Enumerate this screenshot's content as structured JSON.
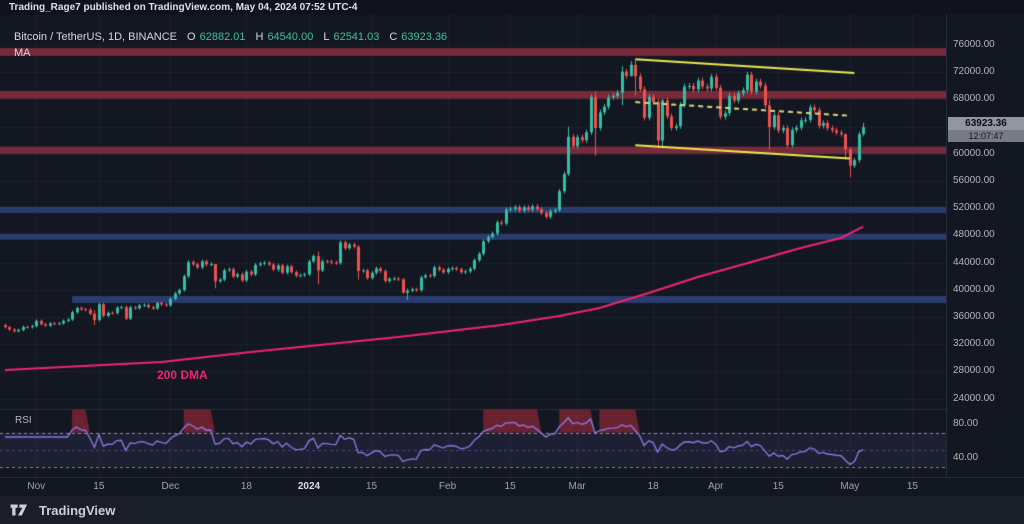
{
  "header": {
    "published_line": "Trading_Rage7 published on TradingView.com, May 04, 2024 07:52 UTC-4"
  },
  "legend": {
    "symbol": "Bitcoin / TetherUS, 1D, BINANCE",
    "ohlc": [
      {
        "label": "O",
        "value": "62882.01"
      },
      {
        "label": "H",
        "value": "64540.00"
      },
      {
        "label": "L",
        "value": "62541.03"
      },
      {
        "label": "C",
        "value": "63923.36"
      }
    ],
    "indicator": "MA"
  },
  "price_scale": {
    "last_price": "63923.36",
    "countdown": "12:07:47",
    "ticks": [
      {
        "text": "76000.00",
        "value": 76000
      },
      {
        "text": "72000.00",
        "value": 72000
      },
      {
        "text": "68000.00",
        "value": 68000
      },
      {
        "text": "60000.00",
        "value": 60000
      },
      {
        "text": "56000.00",
        "value": 56000
      },
      {
        "text": "52000.00",
        "value": 52000
      },
      {
        "text": "48000.00",
        "value": 48000
      },
      {
        "text": "44000.00",
        "value": 44000
      },
      {
        "text": "40000.00",
        "value": 40000
      },
      {
        "text": "36000.00",
        "value": 36000
      },
      {
        "text": "32000.00",
        "value": 32000
      },
      {
        "text": "28000.00",
        "value": 28000
      },
      {
        "text": "24000.00",
        "value": 24000
      }
    ]
  },
  "time_scale": {
    "labels": [
      {
        "text": "Nov",
        "day": 7
      },
      {
        "text": "15",
        "day": 21
      },
      {
        "text": "Dec",
        "day": 37
      },
      {
        "text": "18",
        "day": 54
      },
      {
        "text": "2024",
        "day": 68,
        "bold": true
      },
      {
        "text": "15",
        "day": 82
      },
      {
        "text": "Feb",
        "day": 99
      },
      {
        "text": "15",
        "day": 113
      },
      {
        "text": "Mar",
        "day": 128
      },
      {
        "text": "18",
        "day": 145
      },
      {
        "text": "Apr",
        "day": 159
      },
      {
        "text": "15",
        "day": 173
      },
      {
        "text": "May",
        "day": 189
      },
      {
        "text": "15",
        "day": 203
      }
    ]
  },
  "rsi_pane": {
    "label": "RSI",
    "axis_labels": [
      {
        "text": "80.00",
        "value": 80
      },
      {
        "text": "40.00",
        "value": 40
      }
    ],
    "levels": {
      "overbought": 70,
      "middle": 50,
      "oversold": 30
    }
  },
  "footer": {
    "brand": "TradingView"
  },
  "colors": {
    "background": "#131722",
    "up": "#35bda5",
    "down": "#ee5250",
    "zone_red": "#772b3a",
    "zone_blue": "#2a3c6e",
    "channel_yellow": "#e9e94f",
    "channel_mid_dashed": "#d9d97a",
    "ma_pink": "#f0256e",
    "rsi_purple": "#8678d9",
    "rsi_overbought_fill": "rgba(178,44,62,0.55)",
    "axis_text": "#b2b5be"
  },
  "chart_data": {
    "type": "candlestick",
    "title": "Bitcoin / TetherUS, 1D, BINANCE",
    "interval": "1D",
    "start_date": "2023-10-25",
    "ylim": [
      22500,
      78500
    ],
    "first_open": 34800,
    "closes": [
      34500,
      34160,
      33910,
      34090,
      34540,
      34500,
      34660,
      35440,
      34940,
      34730,
      35060,
      35050,
      35060,
      35440,
      35630,
      36700,
      37310,
      37130,
      37070,
      36470,
      35560,
      37880,
      36160,
      36620,
      36570,
      37370,
      37450,
      35750,
      37410,
      37290,
      37710,
      37780,
      37450,
      37250,
      38060,
      37860,
      37720,
      38690,
      39470,
      39970,
      42000,
      44080,
      43760,
      43290,
      44180,
      43720,
      43790,
      41250,
      41490,
      42870,
      43020,
      41940,
      42280,
      41370,
      42660,
      42260,
      43670,
      43860,
      43980,
      43710,
      42990,
      43580,
      42520,
      43450,
      42600,
      42070,
      42140,
      42280,
      44180,
      44960,
      42850,
      44180,
      44160,
      43990,
      43940,
      46960,
      46110,
      46650,
      46340,
      42780,
      42850,
      41730,
      42510,
      43140,
      42750,
      41290,
      41620,
      41670,
      41550,
      39570,
      39880,
      40080,
      39940,
      41820,
      42120,
      42030,
      43300,
      42950,
      42580,
      43080,
      43190,
      43010,
      42580,
      42710,
      43100,
      44350,
      45290,
      47130,
      47770,
      48290,
      49920,
      49740,
      51800,
      51900,
      52160,
      51660,
      52120,
      51780,
      52270,
      51850,
      51310,
      50740,
      51570,
      51730,
      54500,
      57040,
      62500,
      61130,
      62440,
      61990,
      63170,
      68330,
      63800,
      66090,
      66930,
      68300,
      68500,
      68960,
      72080,
      71450,
      73080,
      71390,
      69500,
      65300,
      68390,
      67610,
      61940,
      67840,
      65500,
      63800,
      64060,
      67230,
      69880,
      69990,
      69470,
      70780,
      69890,
      69620,
      71330,
      69700,
      65450,
      65980,
      68510,
      67840,
      68900,
      69360,
      71630,
      69140,
      70630,
      70010,
      67120,
      63920,
      65660,
      63420,
      63800,
      61280,
      63510,
      63840,
      64940,
      64980,
      66840,
      66430,
      64100,
      64530,
      63760,
      63460,
      63110,
      62900,
      60640,
      58250,
      59060,
      62890,
      63923.36
    ],
    "wick_overrides": {
      "20": [
        37000,
        34810
      ],
      "47": [
        43800,
        40220
      ],
      "70": [
        45580,
        40800
      ],
      "79": [
        46560,
        41500
      ],
      "89": [
        41700,
        39430
      ],
      "90": [
        40180,
        38510
      ],
      "126": [
        63990,
        56710
      ],
      "132": [
        69170,
        59700
      ],
      "138": [
        72900,
        67140
      ],
      "140": [
        73650,
        71340
      ],
      "141": [
        73770,
        68620
      ],
      "146": [
        68120,
        60770
      ],
      "147": [
        68100,
        60800
      ],
      "171": [
        67930,
        60660
      ],
      "188": [
        63000,
        59200
      ],
      "189": [
        60890,
        56550
      ],
      "192": [
        64540,
        62541
      ]
    },
    "last_candle": {
      "o": 62882.01,
      "h": 64540.0,
      "l": 62541.03,
      "c": 63923.36
    },
    "zones": [
      {
        "kind": "resistance",
        "color": "red",
        "top": 75550,
        "bottom": 74400,
        "start_day": 0
      },
      {
        "kind": "resistance",
        "color": "red",
        "top": 69250,
        "bottom": 68100,
        "start_day": 0
      },
      {
        "kind": "resistance",
        "color": "red",
        "top": 61050,
        "bottom": 60000,
        "start_day": 0
      },
      {
        "kind": "support",
        "color": "blue",
        "top": 52200,
        "bottom": 51300,
        "start_day": 0
      },
      {
        "kind": "support",
        "color": "blue",
        "top": 48250,
        "bottom": 47350,
        "start_day": 0
      },
      {
        "kind": "support",
        "color": "blue",
        "top": 39100,
        "bottom": 38050,
        "start_day": 15
      }
    ],
    "channel": {
      "upper": {
        "day1": 141,
        "price1": 73900,
        "day2": 190,
        "price2": 71900,
        "style": "solid"
      },
      "lower": {
        "day1": 141,
        "price1": 61250,
        "day2": 189,
        "price2": 59300,
        "style": "solid"
      },
      "mid_dashed": {
        "day1": 141,
        "price1": 67600,
        "day2": 189,
        "price2": 65600,
        "style": "dashed"
      }
    },
    "ma200": {
      "label": "200 DMA",
      "points": [
        [
          0,
          28200
        ],
        [
          35,
          29380
        ],
        [
          55,
          30850
        ],
        [
          88,
          33060
        ],
        [
          111,
          34820
        ],
        [
          124,
          36150
        ],
        [
          133,
          37320
        ],
        [
          144,
          39530
        ],
        [
          155,
          41880
        ],
        [
          167,
          44090
        ],
        [
          178,
          46150
        ],
        [
          187,
          47620
        ],
        [
          192,
          49300
        ]
      ]
    },
    "rsi": {
      "period": 14,
      "overbought": 70,
      "middle": 50,
      "oversold": 30
    }
  }
}
